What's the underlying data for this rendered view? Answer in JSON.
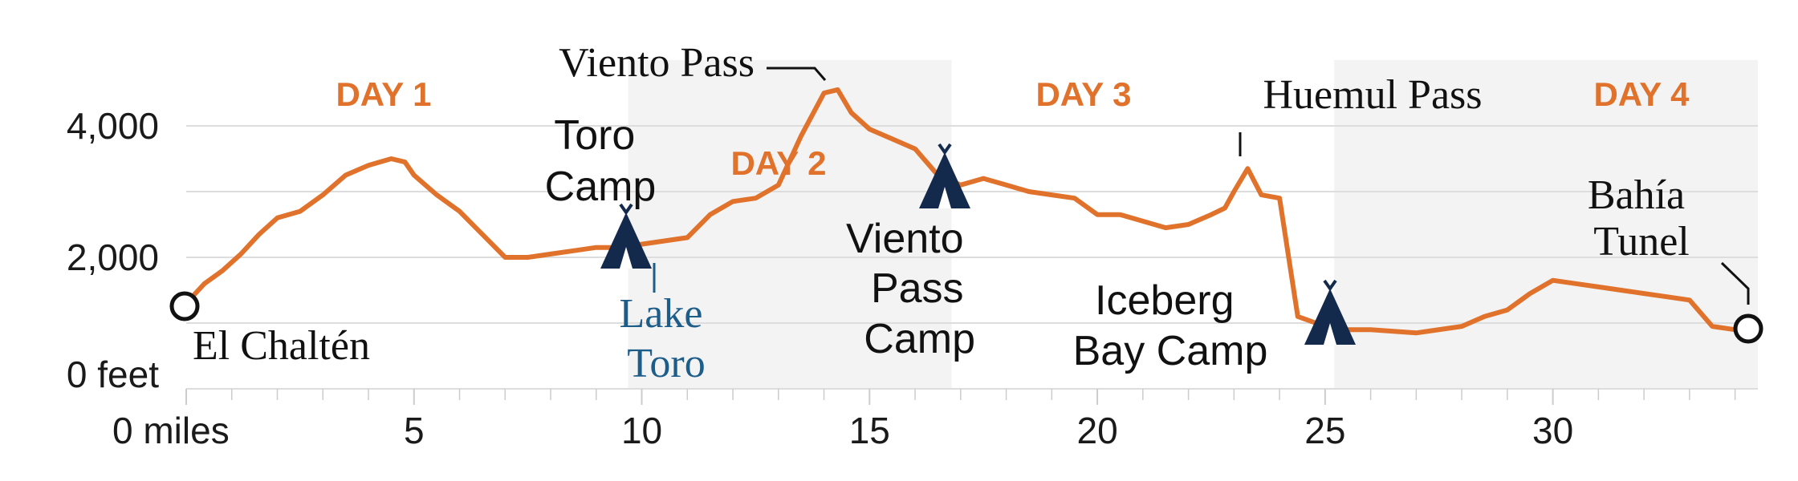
{
  "chart_data": {
    "type": "area",
    "xlabel": "",
    "ylabel": "",
    "xlim": [
      0,
      34.5
    ],
    "ylim": [
      0,
      5000
    ],
    "x_ticks": [
      {
        "value": 0,
        "label": "0 miles"
      },
      {
        "value": 5,
        "label": "5"
      },
      {
        "value": 10,
        "label": "10"
      },
      {
        "value": 15,
        "label": "15"
      },
      {
        "value": 20,
        "label": "20"
      },
      {
        "value": 25,
        "label": "25"
      },
      {
        "value": 30,
        "label": "30"
      }
    ],
    "y_ticks": [
      {
        "value": 0,
        "label": "0 feet"
      },
      {
        "value": 2000,
        "label": "2,000"
      },
      {
        "value": 4000,
        "label": "4,000"
      }
    ],
    "grid": true,
    "series": [
      {
        "color": "#e0722b",
        "x": [
          0,
          0.4,
          0.8,
          1.2,
          1.6,
          2,
          2.5,
          3,
          3.5,
          4,
          4.5,
          4.8,
          5,
          5.5,
          6,
          6.5,
          7,
          7.5,
          8,
          8.5,
          9,
          9.5,
          10,
          10.5,
          11,
          11.5,
          12,
          12.5,
          13,
          13.5,
          14,
          14.3,
          14.6,
          15,
          15.5,
          16,
          16.5,
          17,
          17.5,
          18,
          18.5,
          19,
          19.5,
          20,
          20.5,
          21,
          21.5,
          22,
          22.5,
          22.8,
          23,
          23.3,
          23.6,
          24,
          24.4,
          25,
          25.5,
          26,
          27,
          28,
          28.5,
          29,
          29.5,
          30,
          30.5,
          31,
          31.5,
          32,
          32.5,
          33,
          33.5,
          34,
          34.3
        ],
        "y": [
          1300,
          1600,
          1800,
          2050,
          2350,
          2600,
          2700,
          2950,
          3250,
          3400,
          3500,
          3450,
          3250,
          2950,
          2700,
          2350,
          2000,
          2000,
          2050,
          2100,
          2150,
          2150,
          2200,
          2250,
          2300,
          2650,
          2850,
          2900,
          3100,
          3850,
          4500,
          4550,
          4200,
          3950,
          3800,
          3650,
          3250,
          3100,
          3200,
          3100,
          3000,
          2950,
          2900,
          2650,
          2650,
          2550,
          2450,
          2500,
          2650,
          2750,
          3000,
          3350,
          2950,
          2900,
          1100,
          950,
          900,
          900,
          850,
          950,
          1100,
          1200,
          1450,
          1650,
          1600,
          1550,
          1500,
          1450,
          1400,
          1350,
          950,
          900,
          900
        ]
      }
    ],
    "days": [
      {
        "label": "DAY 1",
        "start": 0,
        "end": 9.7
      },
      {
        "label": "DAY 2",
        "start": 9.7,
        "end": 16.8
      },
      {
        "label": "DAY 3",
        "start": 16.8,
        "end": 25.2
      },
      {
        "label": "DAY 4",
        "start": 25.2,
        "end": 34.5
      }
    ],
    "annotations": [
      {
        "id": "viento-pass",
        "lines": [
          "Viento Pass"
        ],
        "x": 14.3,
        "y": 4550
      },
      {
        "id": "huemul-pass",
        "lines": [
          "Huemul Pass"
        ],
        "x": 23.3,
        "y": 3350
      },
      {
        "id": "toro-camp",
        "lines": [
          "Toro",
          "Camp"
        ],
        "x": 9.7,
        "y": 2150
      },
      {
        "id": "lake-toro",
        "lines": [
          "Lake",
          "Toro"
        ],
        "x": 10.3,
        "y": 2200
      },
      {
        "id": "viento-pass-camp",
        "lines": [
          "Viento",
          "Pass",
          "Camp"
        ],
        "x": 16.8,
        "y": 3150
      },
      {
        "id": "iceberg-bay-camp",
        "lines": [
          "Iceberg",
          "Bay Camp"
        ],
        "x": 25.2,
        "y": 950
      },
      {
        "id": "el-chalten",
        "lines": [
          "El Chaltén"
        ],
        "x": 0,
        "y": 1250
      },
      {
        "id": "bahia-tunel",
        "lines": [
          "Bahía",
          "Tunel"
        ],
        "x": 34.5,
        "y": 900
      }
    ]
  }
}
